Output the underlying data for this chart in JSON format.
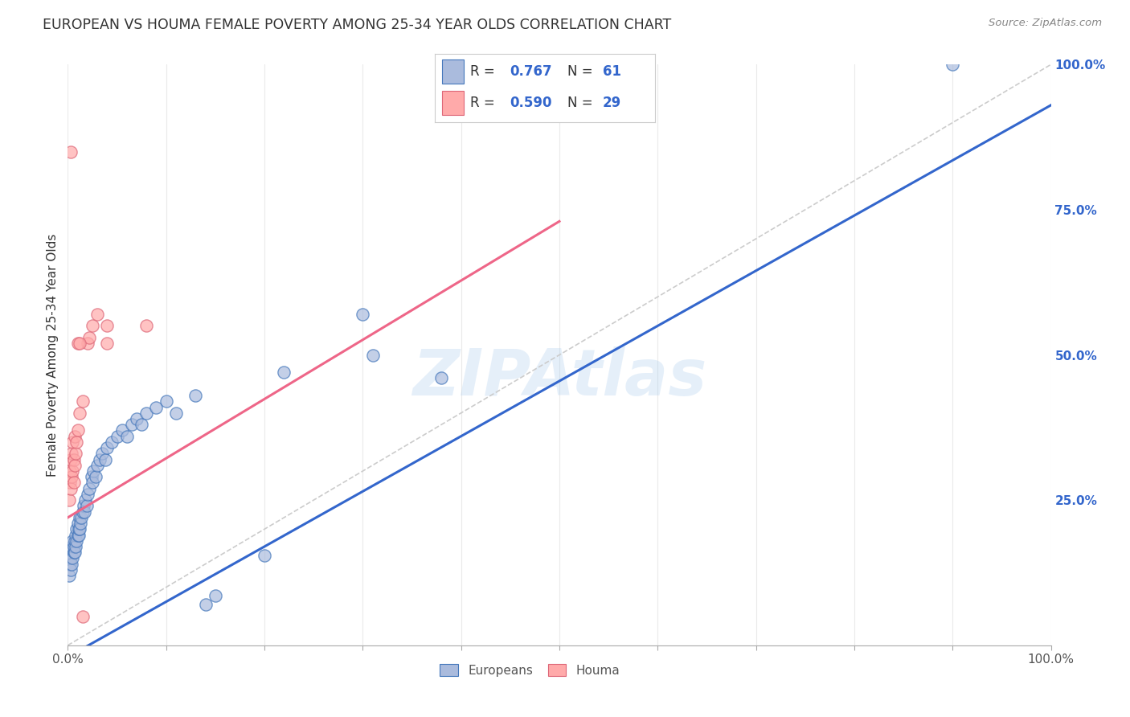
{
  "title": "EUROPEAN VS HOUMA FEMALE POVERTY AMONG 25-34 YEAR OLDS CORRELATION CHART",
  "source": "Source: ZipAtlas.com",
  "ylabel": "Female Poverty Among 25-34 Year Olds",
  "watermark": "ZIPAtlas",
  "legend_blue_R": "0.767",
  "legend_blue_N": "61",
  "legend_pink_R": "0.590",
  "legend_pink_N": "29",
  "blue_fill": "#AABBDD",
  "blue_edge": "#4477BB",
  "pink_fill": "#FFAAAA",
  "pink_edge": "#DD6677",
  "line_blue": "#3366CC",
  "line_pink": "#EE6688",
  "line_diagonal": "#CCCCCC",
  "background": "#FFFFFF",
  "blue_scatter": [
    [
      0.001,
      0.12
    ],
    [
      0.002,
      0.14
    ],
    [
      0.002,
      0.16
    ],
    [
      0.003,
      0.13
    ],
    [
      0.003,
      0.15
    ],
    [
      0.004,
      0.14
    ],
    [
      0.004,
      0.17
    ],
    [
      0.005,
      0.15
    ],
    [
      0.005,
      0.18
    ],
    [
      0.006,
      0.16
    ],
    [
      0.006,
      0.17
    ],
    [
      0.007,
      0.16
    ],
    [
      0.007,
      0.18
    ],
    [
      0.008,
      0.17
    ],
    [
      0.008,
      0.19
    ],
    [
      0.009,
      0.18
    ],
    [
      0.009,
      0.2
    ],
    [
      0.01,
      0.19
    ],
    [
      0.01,
      0.21
    ],
    [
      0.011,
      0.19
    ],
    [
      0.011,
      0.2
    ],
    [
      0.012,
      0.2
    ],
    [
      0.012,
      0.22
    ],
    [
      0.013,
      0.21
    ],
    [
      0.014,
      0.22
    ],
    [
      0.015,
      0.23
    ],
    [
      0.016,
      0.24
    ],
    [
      0.017,
      0.23
    ],
    [
      0.018,
      0.25
    ],
    [
      0.019,
      0.24
    ],
    [
      0.02,
      0.26
    ],
    [
      0.022,
      0.27
    ],
    [
      0.024,
      0.29
    ],
    [
      0.025,
      0.28
    ],
    [
      0.026,
      0.3
    ],
    [
      0.028,
      0.29
    ],
    [
      0.03,
      0.31
    ],
    [
      0.032,
      0.32
    ],
    [
      0.035,
      0.33
    ],
    [
      0.038,
      0.32
    ],
    [
      0.04,
      0.34
    ],
    [
      0.045,
      0.35
    ],
    [
      0.05,
      0.36
    ],
    [
      0.055,
      0.37
    ],
    [
      0.06,
      0.36
    ],
    [
      0.065,
      0.38
    ],
    [
      0.07,
      0.39
    ],
    [
      0.075,
      0.38
    ],
    [
      0.08,
      0.4
    ],
    [
      0.09,
      0.41
    ],
    [
      0.1,
      0.42
    ],
    [
      0.11,
      0.4
    ],
    [
      0.13,
      0.43
    ],
    [
      0.14,
      0.07
    ],
    [
      0.15,
      0.085
    ],
    [
      0.2,
      0.155
    ],
    [
      0.22,
      0.47
    ],
    [
      0.3,
      0.57
    ],
    [
      0.31,
      0.5
    ],
    [
      0.38,
      0.46
    ],
    [
      0.9,
      1.0
    ]
  ],
  "pink_scatter": [
    [
      0.001,
      0.25
    ],
    [
      0.002,
      0.28
    ],
    [
      0.002,
      0.3
    ],
    [
      0.003,
      0.27
    ],
    [
      0.003,
      0.32
    ],
    [
      0.004,
      0.29
    ],
    [
      0.004,
      0.33
    ],
    [
      0.005,
      0.3
    ],
    [
      0.005,
      0.35
    ],
    [
      0.006,
      0.28
    ],
    [
      0.006,
      0.32
    ],
    [
      0.007,
      0.31
    ],
    [
      0.007,
      0.36
    ],
    [
      0.008,
      0.33
    ],
    [
      0.009,
      0.35
    ],
    [
      0.01,
      0.37
    ],
    [
      0.012,
      0.4
    ],
    [
      0.015,
      0.42
    ],
    [
      0.02,
      0.52
    ],
    [
      0.022,
      0.53
    ],
    [
      0.025,
      0.55
    ],
    [
      0.03,
      0.57
    ],
    [
      0.04,
      0.52
    ],
    [
      0.04,
      0.55
    ],
    [
      0.003,
      0.85
    ],
    [
      0.01,
      0.52
    ],
    [
      0.012,
      0.52
    ],
    [
      0.015,
      0.05
    ],
    [
      0.08,
      0.55
    ]
  ],
  "blue_line_x": [
    0.0,
    1.0
  ],
  "blue_line_y": [
    -0.02,
    0.93
  ],
  "pink_line_x": [
    0.0,
    0.5
  ],
  "pink_line_y": [
    0.22,
    0.73
  ],
  "diag_line_x": [
    0.0,
    1.0
  ],
  "diag_line_y": [
    0.0,
    1.0
  ],
  "xlim": [
    0.0,
    1.0
  ],
  "ylim": [
    0.0,
    1.0
  ],
  "xtick_positions": [
    0.0,
    0.1,
    0.2,
    0.3,
    0.4,
    0.5,
    0.6,
    0.7,
    0.8,
    0.9,
    1.0
  ],
  "ytick_right_positions": [
    0.0,
    0.25,
    0.5,
    0.75,
    1.0
  ],
  "ytick_right_labels": [
    "",
    "25.0%",
    "50.0%",
    "75.0%",
    "100.0%"
  ]
}
